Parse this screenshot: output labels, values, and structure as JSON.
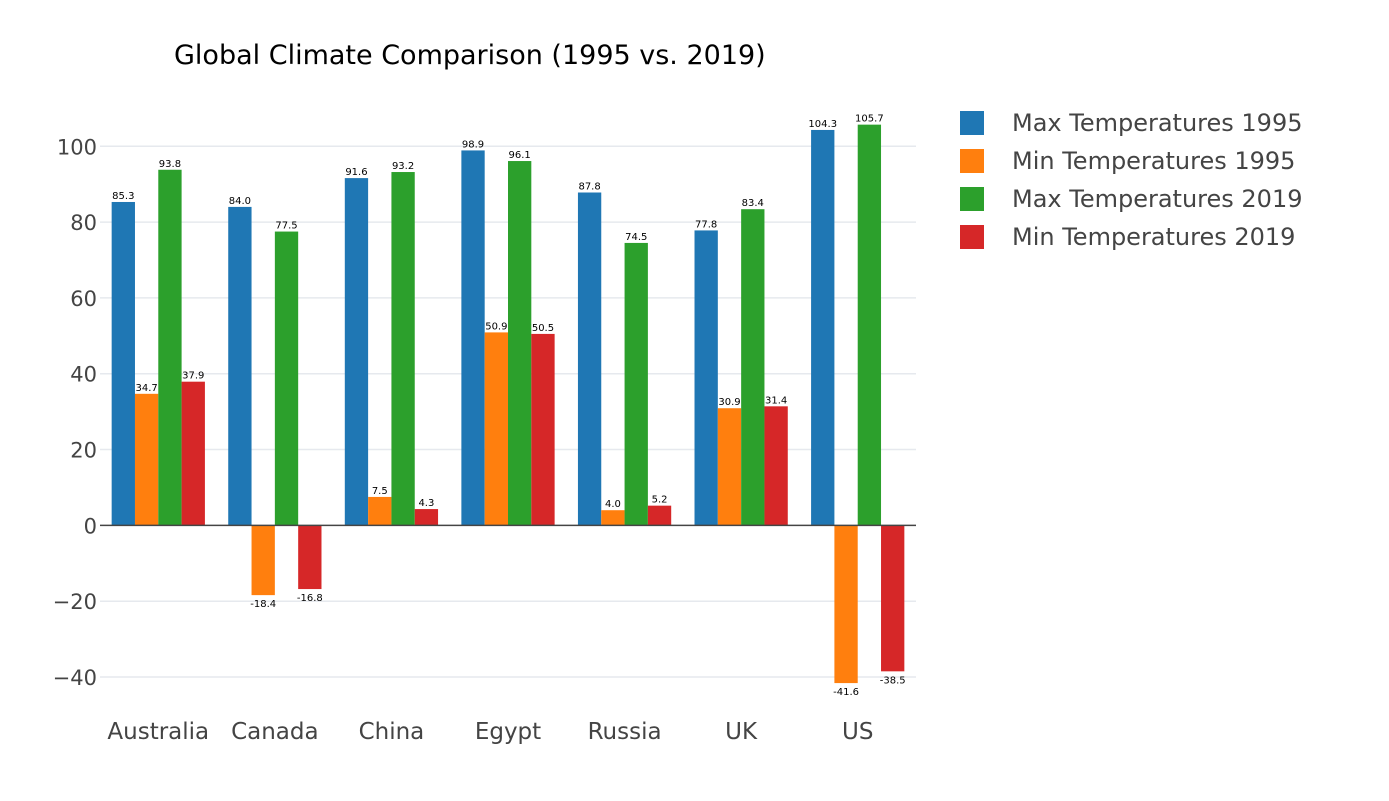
{
  "chart_data": {
    "type": "bar",
    "title": "Global Climate Comparison (1995 vs. 2019)",
    "xlabel": "",
    "ylabel": "",
    "categories": [
      "Australia",
      "Canada",
      "China",
      "Egypt",
      "Russia",
      "UK",
      "US"
    ],
    "series": [
      {
        "name": "Max Temperatures 1995",
        "color": "#1f77b4",
        "values": [
          85.3,
          84.0,
          91.6,
          98.9,
          87.8,
          77.8,
          104.3
        ]
      },
      {
        "name": "Min Temperatures 1995",
        "color": "#ff7f0e",
        "values": [
          34.7,
          -18.4,
          7.5,
          50.9,
          4.0,
          30.9,
          -41.6
        ]
      },
      {
        "name": "Max Temperatures 2019",
        "color": "#2ca02c",
        "values": [
          93.8,
          77.5,
          93.2,
          96.1,
          74.5,
          83.4,
          105.7
        ]
      },
      {
        "name": "Min Temperatures 2019",
        "color": "#d62728",
        "values": [
          37.9,
          -16.8,
          4.3,
          50.5,
          5.2,
          31.4,
          -38.5
        ]
      }
    ],
    "ylim": [
      -48.7,
      112.2
    ],
    "yticks": [
      -40,
      -20,
      0,
      20,
      40,
      60,
      80,
      100
    ],
    "ytick_labels": [
      "−40",
      "−20",
      "0",
      "20",
      "40",
      "60",
      "80",
      "100"
    ],
    "grid": true,
    "legend_position": "right"
  }
}
